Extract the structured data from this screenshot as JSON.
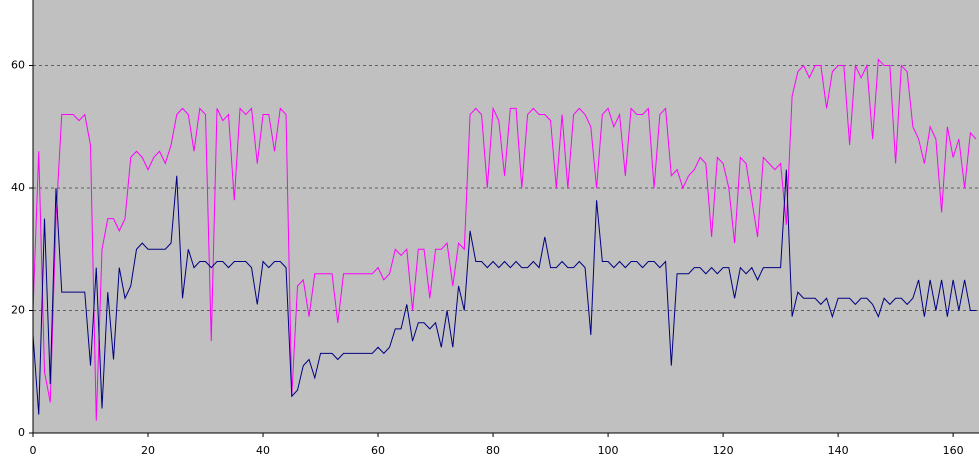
{
  "chart_data": {
    "type": "line",
    "x": [
      0,
      1,
      2,
      3,
      4,
      5,
      6,
      7,
      8,
      9,
      10,
      11,
      12,
      13,
      14,
      15,
      16,
      17,
      18,
      19,
      20,
      21,
      22,
      23,
      24,
      25,
      26,
      27,
      28,
      29,
      30,
      31,
      32,
      33,
      34,
      35,
      36,
      37,
      38,
      39,
      40,
      41,
      42,
      43,
      44,
      45,
      46,
      47,
      48,
      49,
      50,
      51,
      52,
      53,
      54,
      55,
      56,
      57,
      58,
      59,
      60,
      61,
      62,
      63,
      64,
      65,
      66,
      67,
      68,
      69,
      70,
      71,
      72,
      73,
      74,
      75,
      76,
      77,
      78,
      79,
      80,
      81,
      82,
      83,
      84,
      85,
      86,
      87,
      88,
      89,
      90,
      91,
      92,
      93,
      94,
      95,
      96,
      97,
      98,
      99,
      100,
      101,
      102,
      103,
      104,
      105,
      106,
      107,
      108,
      109,
      110,
      111,
      112,
      113,
      114,
      115,
      116,
      117,
      118,
      119,
      120,
      121,
      122,
      123,
      124,
      125,
      126,
      127,
      128,
      129,
      130,
      131,
      132,
      133,
      134,
      135,
      136,
      137,
      138,
      139,
      140,
      141,
      142,
      143,
      144,
      145,
      146,
      147,
      148,
      149,
      150,
      151,
      152,
      153,
      154,
      155,
      156,
      157,
      158,
      159,
      160,
      161,
      162,
      163,
      164
    ],
    "series": [
      {
        "color": "#ff00ff",
        "values": [
          20,
          46,
          10,
          5,
          35,
          52,
          52,
          52,
          51,
          52,
          47,
          2,
          30,
          35,
          35,
          33,
          35,
          45,
          46,
          45,
          43,
          45,
          46,
          44,
          47,
          52,
          53,
          52,
          46,
          53,
          52,
          15,
          53,
          51,
          52,
          38,
          53,
          52,
          53,
          44,
          52,
          52,
          46,
          53,
          52,
          6,
          24,
          25,
          19,
          26,
          26,
          26,
          26,
          18,
          26,
          26,
          26,
          26,
          26,
          26,
          27,
          25,
          26,
          30,
          29,
          30,
          20,
          30,
          30,
          22,
          30,
          30,
          31,
          24,
          31,
          30,
          52,
          53,
          52,
          40,
          53,
          51,
          42,
          53,
          53,
          40,
          52,
          53,
          52,
          52,
          51,
          40,
          52,
          40,
          52,
          53,
          52,
          50,
          40,
          52,
          53,
          50,
          52,
          42,
          53,
          52,
          52,
          53,
          40,
          52,
          53,
          42,
          43,
          40,
          42,
          43,
          45,
          44,
          32,
          45,
          44,
          40,
          31,
          45,
          44,
          38,
          32,
          45,
          44,
          43,
          44,
          34,
          55,
          59,
          60,
          58,
          60,
          60,
          53,
          59,
          60,
          60,
          47,
          60,
          58,
          60,
          48,
          61,
          60,
          60,
          44,
          60,
          59,
          50,
          48,
          44,
          50,
          48,
          36,
          50,
          45,
          48,
          40,
          49,
          48
        ]
      },
      {
        "color": "#000080",
        "values": [
          16,
          3,
          35,
          8,
          40,
          23,
          23,
          23,
          23,
          23,
          11,
          27,
          4,
          23,
          12,
          27,
          22,
          24,
          30,
          31,
          30,
          30,
          30,
          30,
          31,
          42,
          22,
          30,
          27,
          28,
          28,
          27,
          28,
          28,
          27,
          28,
          28,
          28,
          27,
          21,
          28,
          27,
          28,
          28,
          27,
          6,
          7,
          11,
          12,
          9,
          13,
          13,
          13,
          12,
          13,
          13,
          13,
          13,
          13,
          13,
          14,
          13,
          14,
          17,
          17,
          21,
          15,
          18,
          18,
          17,
          18,
          14,
          20,
          14,
          24,
          20,
          33,
          28,
          28,
          27,
          28,
          27,
          28,
          27,
          28,
          27,
          27,
          28,
          27,
          32,
          27,
          27,
          28,
          27,
          27,
          28,
          27,
          16,
          38,
          28,
          28,
          27,
          28,
          27,
          28,
          28,
          27,
          28,
          28,
          27,
          28,
          11,
          26,
          26,
          26,
          27,
          27,
          26,
          27,
          26,
          27,
          27,
          22,
          27,
          26,
          27,
          25,
          27,
          27,
          27,
          27,
          43,
          19,
          23,
          22,
          22,
          22,
          21,
          22,
          19,
          22,
          22,
          22,
          21,
          22,
          22,
          21,
          19,
          22,
          21,
          22,
          22,
          21,
          22,
          25,
          19,
          25,
          20,
          25,
          19,
          25,
          20,
          25,
          20,
          20
        ]
      }
    ],
    "xlim": [
      0,
      164.5
    ],
    "xticks": [
      0,
      20,
      40,
      60,
      80,
      100,
      120,
      140,
      160
    ],
    "ylim": [
      0,
      70.7
    ],
    "yticks": [
      0,
      20,
      40,
      60
    ],
    "grid": true,
    "background": "#c0c0c0"
  }
}
